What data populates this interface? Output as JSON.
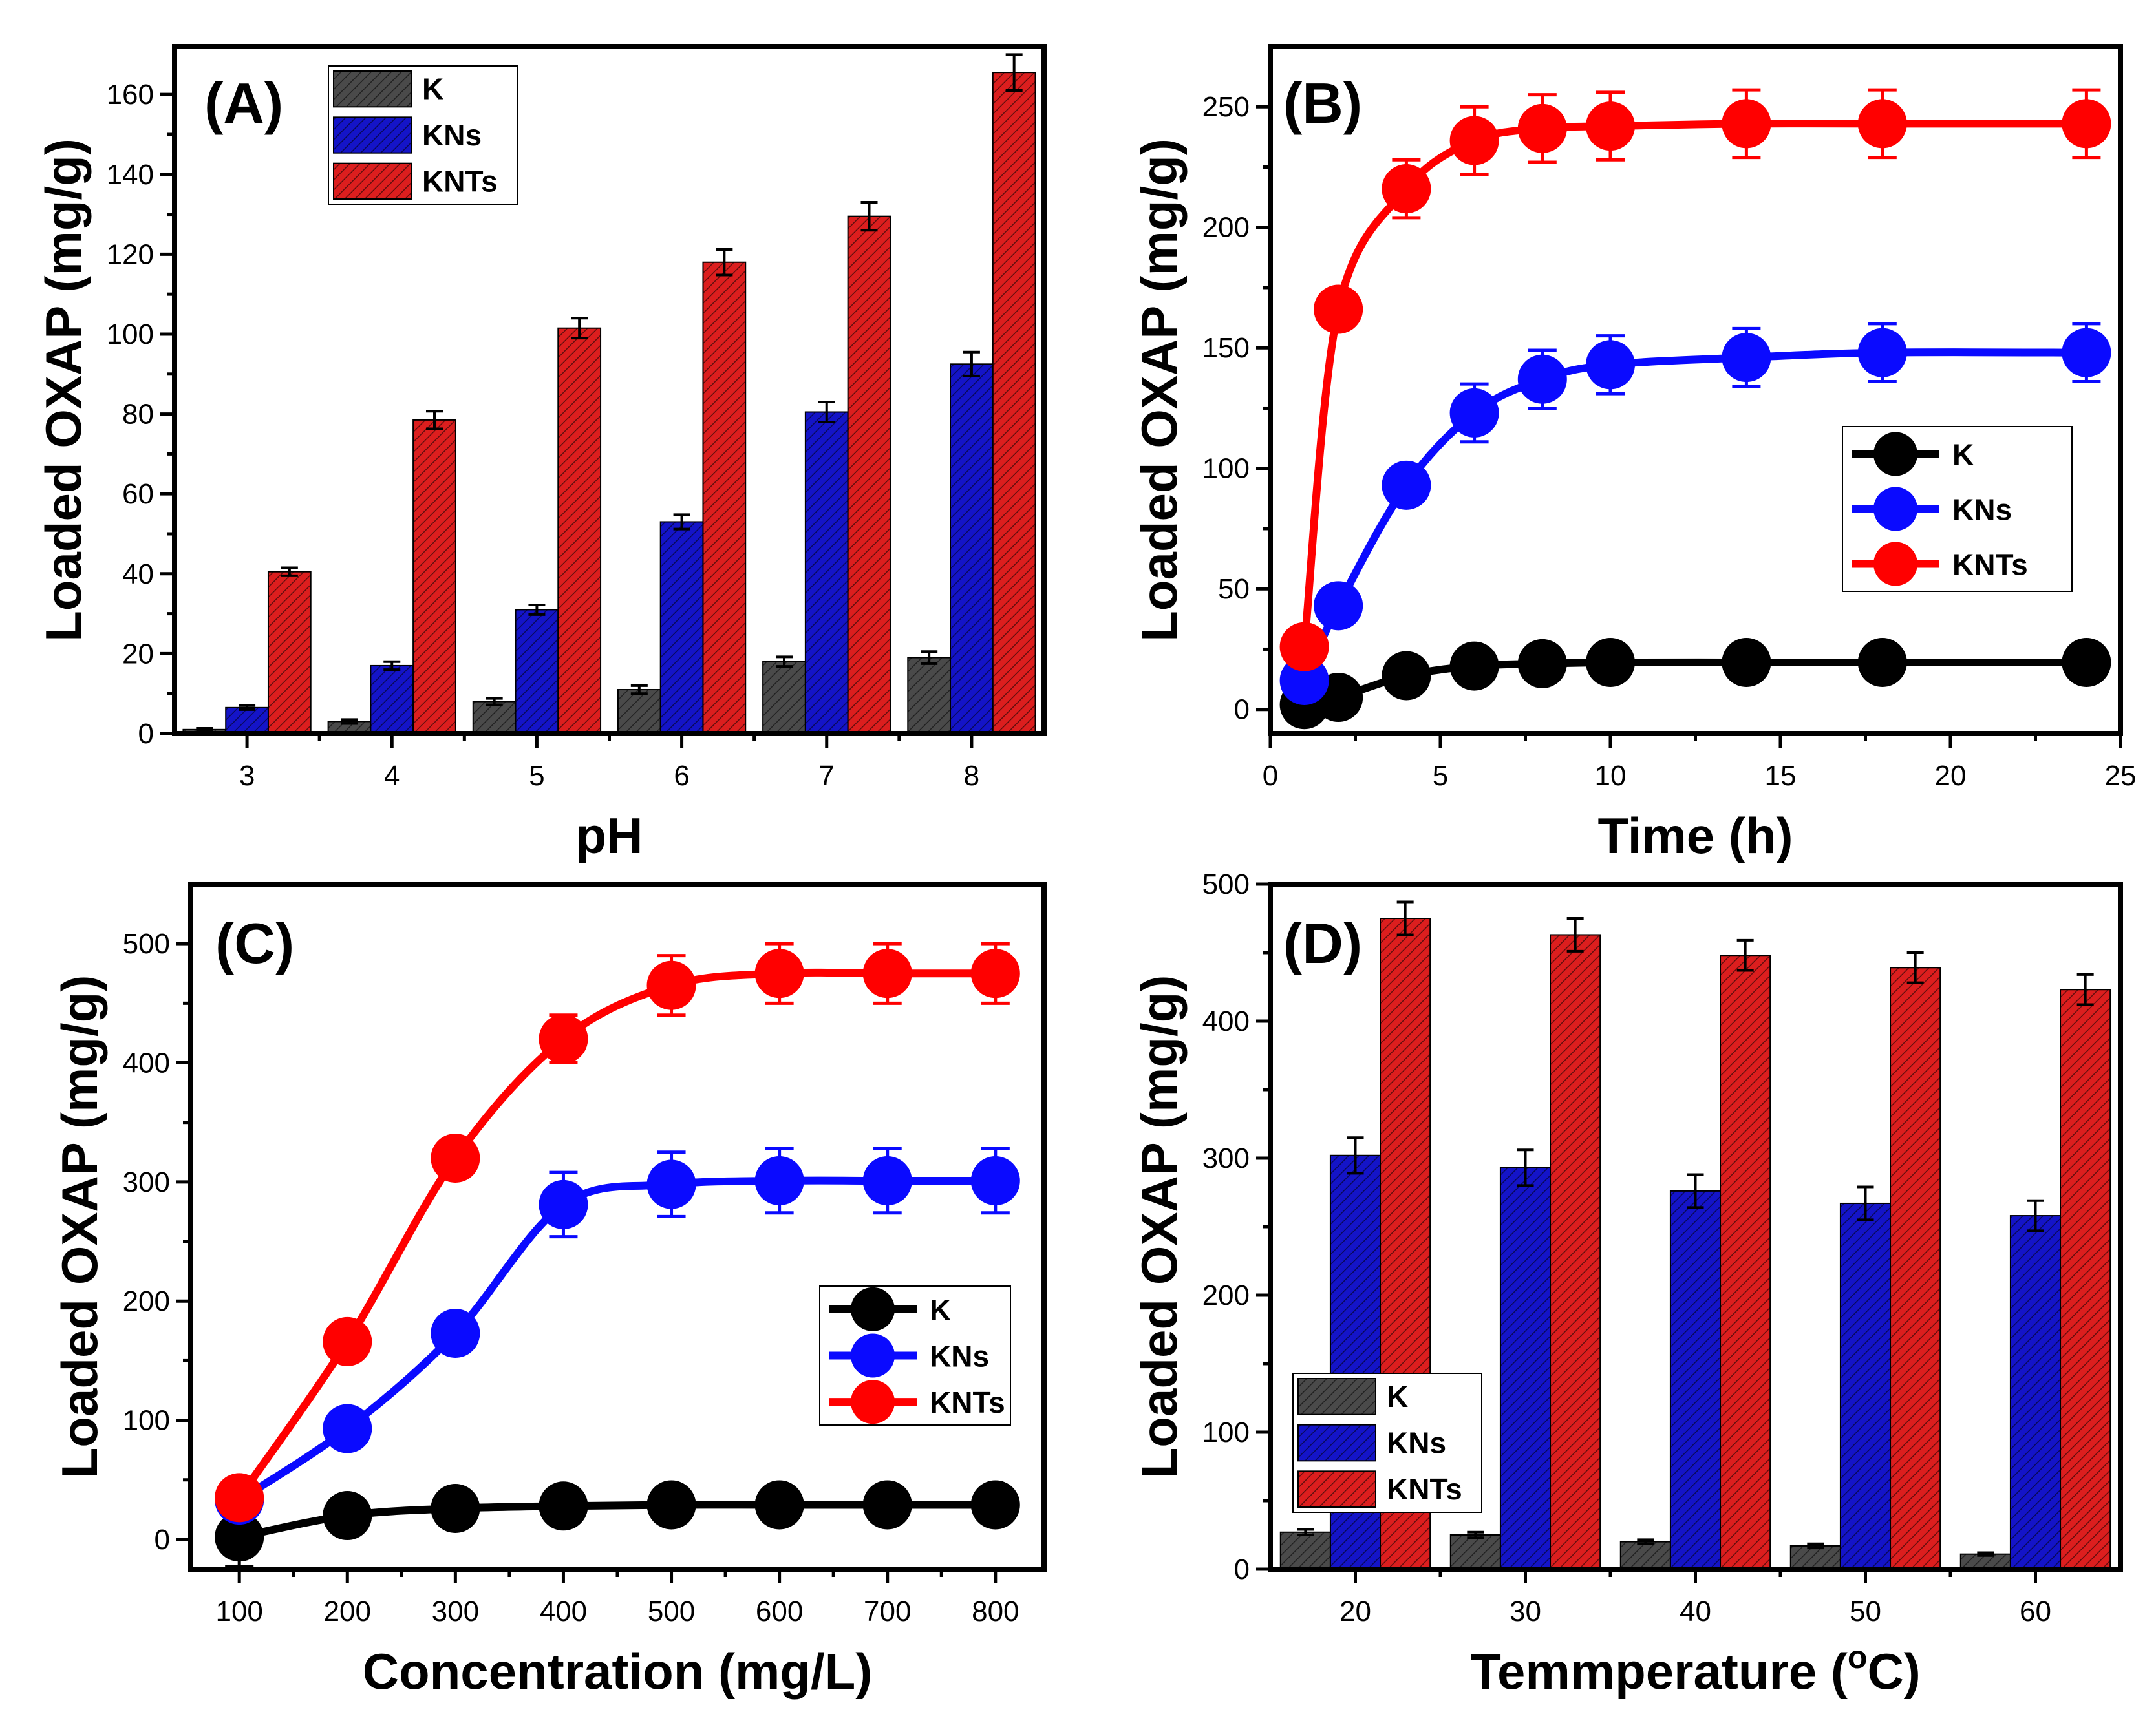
{
  "colors": {
    "K": "#4a4a4a",
    "KNs": "#1414c8",
    "KNTs": "#dc1e1e",
    "K_line": "#000000",
    "KNs_line": "#0a0aff",
    "KNTs_line": "#ff0000"
  },
  "chart_data": [
    {
      "id": "A",
      "type": "bar",
      "panel_label": "(A)",
      "xlabel": "pH",
      "ylabel": "Loaded OXAP (mg/g)",
      "categories": [
        "3",
        "4",
        "5",
        "6",
        "7",
        "8"
      ],
      "ylim": [
        0,
        172
      ],
      "yticks": [
        0,
        20,
        40,
        60,
        80,
        100,
        120,
        140,
        160
      ],
      "legend_position": "top-left",
      "series": [
        {
          "name": "K",
          "color_key": "K",
          "values": [
            1,
            3,
            8,
            11,
            18,
            19
          ],
          "errors": [
            0.3,
            0.5,
            0.8,
            1,
            1.2,
            1.5
          ]
        },
        {
          "name": "KNs",
          "color_key": "KNs",
          "values": [
            6.5,
            17,
            31,
            53,
            80.5,
            92.5
          ],
          "errors": [
            0.5,
            1,
            1.2,
            1.8,
            2.5,
            3
          ]
        },
        {
          "name": "KNTs",
          "color_key": "KNTs",
          "values": [
            40.5,
            78.5,
            101.5,
            118,
            129.5,
            165.5
          ],
          "errors": [
            1,
            2.2,
            2.5,
            3.2,
            3.5,
            4.5
          ]
        }
      ]
    },
    {
      "id": "B",
      "type": "line",
      "panel_label": "(B)",
      "xlabel": "Time (h)",
      "ylabel": "Loaded OXAP (mg/g)",
      "xlim": [
        0,
        25
      ],
      "xticks": [
        0,
        5,
        10,
        15,
        20,
        25
      ],
      "ylim": [
        -10,
        275
      ],
      "yticks": [
        0,
        50,
        100,
        150,
        200,
        250
      ],
      "legend_position": "center-right",
      "series": [
        {
          "name": "K",
          "color_key": "K_line",
          "x": [
            1,
            2,
            4,
            6,
            8,
            10,
            14,
            18,
            24
          ],
          "values": [
            2,
            5,
            14,
            18,
            19,
            19.5,
            19.5,
            19.5,
            19.5
          ],
          "errors": [
            0,
            0,
            0,
            0,
            0,
            0,
            0,
            0,
            0
          ]
        },
        {
          "name": "KNs",
          "color_key": "KNs_line",
          "x": [
            1,
            2,
            4,
            6,
            8,
            10,
            14,
            18,
            24
          ],
          "values": [
            12,
            43,
            93,
            123,
            137,
            143,
            146,
            148,
            148
          ],
          "errors": [
            0,
            0,
            0,
            12,
            12,
            12,
            12,
            12,
            12
          ]
        },
        {
          "name": "KNTs",
          "color_key": "KNTs_line",
          "x": [
            1,
            2,
            4,
            6,
            8,
            10,
            14,
            18,
            24
          ],
          "values": [
            26,
            166,
            216,
            236,
            241,
            242,
            243,
            243,
            243
          ],
          "errors": [
            0,
            0,
            12,
            14,
            14,
            14,
            14,
            14,
            14
          ]
        }
      ]
    },
    {
      "id": "C",
      "type": "line",
      "panel_label": "(C)",
      "xlabel": "Concentration (mg/L)",
      "ylabel": "Loaded OXAP (mg/g)",
      "xlim": [
        55,
        845
      ],
      "xticks": [
        100,
        200,
        300,
        400,
        500,
        600,
        700,
        800
      ],
      "ylim": [
        -25,
        550
      ],
      "yticks": [
        0,
        100,
        200,
        300,
        400,
        500
      ],
      "legend_position": "center-right",
      "series": [
        {
          "name": "K",
          "color_key": "K_line",
          "x": [
            100,
            200,
            300,
            400,
            500,
            600,
            700,
            800
          ],
          "values": [
            2,
            20,
            26,
            28,
            29,
            29,
            29,
            29
          ],
          "errors": [
            25,
            0,
            0,
            0,
            0,
            0,
            0,
            0
          ]
        },
        {
          "name": "KNs",
          "color_key": "KNs_line",
          "x": [
            100,
            200,
            300,
            400,
            500,
            600,
            700,
            800
          ],
          "values": [
            33,
            93,
            173,
            281,
            298,
            301,
            301,
            301
          ],
          "errors": [
            0,
            0,
            0,
            27,
            27,
            27,
            27,
            27
          ]
        },
        {
          "name": "KNTs",
          "color_key": "KNTs_line",
          "x": [
            100,
            200,
            300,
            400,
            500,
            600,
            700,
            800
          ],
          "values": [
            35,
            166,
            320,
            420,
            465,
            475,
            475,
            475
          ],
          "errors": [
            0,
            0,
            0,
            20,
            25,
            25,
            25,
            25
          ]
        }
      ]
    },
    {
      "id": "D",
      "type": "bar",
      "panel_label": "(D)",
      "xlabel": "Temmperature (",
      "xlabel_sup": "o",
      "xlabel_tail": "C)",
      "ylabel": "Loaded OXAP (mg/g)",
      "categories": [
        "20",
        "30",
        "40",
        "50",
        "60"
      ],
      "ylim": [
        0,
        500
      ],
      "yticks": [
        0,
        100,
        200,
        300,
        400,
        500
      ],
      "legend_position": "bottom-left",
      "series": [
        {
          "name": "K",
          "color_key": "K",
          "values": [
            27,
            25,
            20,
            17,
            11
          ],
          "errors": [
            2,
            2,
            1.5,
            1.5,
            1
          ]
        },
        {
          "name": "KNs",
          "color_key": "KNs",
          "values": [
            302,
            293,
            276,
            267,
            258
          ],
          "errors": [
            13,
            13,
            12,
            12,
            11
          ]
        },
        {
          "name": "KNTs",
          "color_key": "KNTs",
          "values": [
            475,
            463,
            448,
            439,
            423
          ],
          "errors": [
            12,
            12,
            11,
            11,
            11
          ]
        }
      ]
    }
  ]
}
